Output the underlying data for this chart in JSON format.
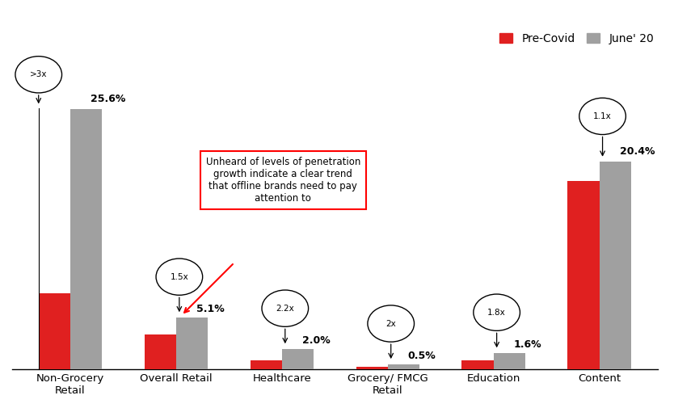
{
  "categories": [
    "Non-Grocery\nRetail",
    "Overall Retail",
    "Healthcare",
    "Grocery/ FMCG\nRetail",
    "Education",
    "Content"
  ],
  "pre_covid": [
    7.5,
    3.4,
    0.9,
    0.25,
    0.89,
    18.5
  ],
  "june20": [
    25.6,
    5.1,
    2.0,
    0.5,
    1.6,
    20.4
  ],
  "pre_covid_color": "#e02020",
  "june20_color": "#a0a0a0",
  "bar_width": 0.3,
  "multipliers": [
    ">3x",
    "1.5x",
    "2.2x",
    "2x",
    "1.8x",
    "1.1x"
  ],
  "june20_labels": [
    "25.6%",
    "5.1%",
    "2.0%",
    "0.5%",
    "1.6%",
    "20.4%"
  ],
  "annotation_text": "Unheard of levels of penetration\ngrowth indicate a clear trend\nthat offline brands need to pay\nattention to",
  "legend_labels": [
    "Pre-Covid",
    "June' 20"
  ],
  "background_color": "#ffffff",
  "ylim": [
    0,
    31
  ]
}
